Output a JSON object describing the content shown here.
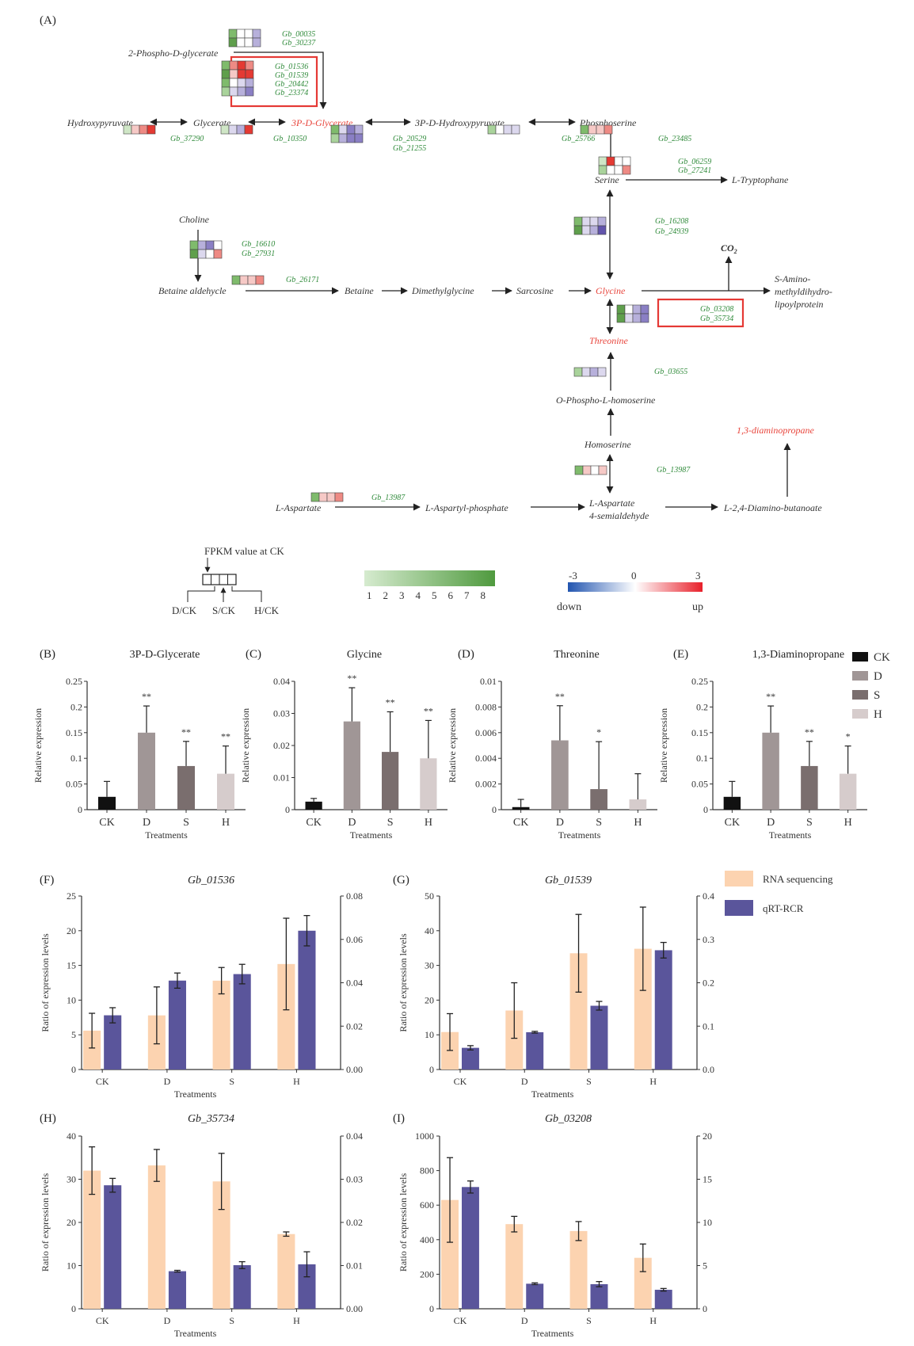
{
  "panel_a": {
    "label": "(A)",
    "metabolites": {
      "phospho_glycerate": "2-Phospho-D-glycerate",
      "hydroxypyruvate": "Hydroxypyruvate",
      "glycerate": "Glycerate",
      "p3_glycerate": "3P-D-Glycerate",
      "p3_hydroxypyruvate": "3P-D-Hydroxypyruvate",
      "phosphoserine": "Phosphoserine",
      "serine": "Serine",
      "tryptophane": "L-Tryptophane",
      "choline": "Choline",
      "betaine_aldehycle": "Betaine aldehycle",
      "betaine": "Betaine",
      "dimethylglycine": "Dimethylglycine",
      "sarcosine": "Sarcosine",
      "glycine": "Glycine",
      "co2": "CO",
      "co2_sub": "2",
      "s_amino_1": "S-Amino-",
      "s_amino_2": "methyldihydro-",
      "s_amino_3": "lipoylprotein",
      "threonine": "Threonine",
      "o_phospho": "O-Phospho-L-homoserine",
      "homoserine": "Homoserine",
      "diaminopropane": "1,3-diaminopropane",
      "l_aspartate": "L-Aspartate",
      "aspartyl_phosphate": "L-Aspartyl-phosphate",
      "aspartate_semi_1": "L-Aspartate",
      "aspartate_semi_2": "4-semialdehyde",
      "diamino_butanoate": "L-2,4-Diamino-butanoate"
    },
    "genes": {
      "g00035": "Gb_00035",
      "g30237": "Gb_30237",
      "g01536": "Gb_01536",
      "g01539": "Gb_01539",
      "g20442": "Gb_20442",
      "g23374": "Gb_23374",
      "g37290": "Gb_37290",
      "g10350": "Gb_10350",
      "g20529": "Gb_20529",
      "g21255": "Gb_21255",
      "g25766": "Gb_25766",
      "g23485": "Gb_23485",
      "g06259": "Gb_06259",
      "g27241": "Gb_27241",
      "g16208": "Gb_16208",
      "g24939": "Gb_24939",
      "g16610": "Gb_16610",
      "g27931": "Gb_27931",
      "g26171": "Gb_26171",
      "g03208": "Gb_03208",
      "g35734": "Gb_35734",
      "g03655": "Gb_03655",
      "g13987a": "Gb_13987",
      "g13987b": "Gb_13987"
    },
    "legend": {
      "fpkm_title": "FPKM value at CK",
      "dck": "D/CK",
      "sck": "S/CK",
      "hck": "H/CK",
      "green_ticks": [
        "1",
        "2",
        "3",
        "4",
        "5",
        "6",
        "7",
        "8"
      ],
      "red_min": "-3",
      "red_mid": "0",
      "red_max": "3",
      "down": "down",
      "up": "up"
    },
    "colors": {
      "heat_up": "#e8453c",
      "heat_down": "#6b5fb0",
      "fpkm": "#5a9e4a",
      "highlight": "#e53935"
    }
  },
  "bar_panels": {
    "ylabel": "Relative expression",
    "xlabel": "Treatments",
    "categories": [
      "CK",
      "D",
      "S",
      "H"
    ],
    "legend": [
      "CK",
      "D",
      "S",
      "H"
    ],
    "colors": [
      "#111111",
      "#a09696",
      "#7a6e6e",
      "#d6cccc"
    ]
  },
  "combo_panels": {
    "ylabel": "Ratio of expression levels",
    "xlabel": "Treatments",
    "categories": [
      "CK",
      "D",
      "S",
      "H"
    ],
    "legend": [
      "RNA sequencing",
      "qRT-RCR"
    ],
    "colors": [
      "#fcd3b0",
      "#5a559b"
    ]
  },
  "chart_data": [
    {
      "type": "bar",
      "label": "(B)",
      "title": "3P-D-Glycerate",
      "categories": [
        "CK",
        "D",
        "S",
        "H"
      ],
      "values": [
        0.025,
        0.15,
        0.085,
        0.07
      ],
      "errors": [
        0.03,
        0.052,
        0.048,
        0.054
      ],
      "significance": [
        "",
        "**",
        "**",
        "**"
      ],
      "ylim": [
        0,
        0.25
      ],
      "yticks": [
        "0",
        "0.05",
        "0.1",
        "0.15",
        "0.2",
        "0.25"
      ],
      "ylabel": "Relative expression",
      "xlabel": "Treatments"
    },
    {
      "type": "bar",
      "label": "(C)",
      "title": "Glycine",
      "categories": [
        "CK",
        "D",
        "S",
        "H"
      ],
      "values": [
        0.0025,
        0.0275,
        0.018,
        0.016
      ],
      "errors": [
        0.001,
        0.0105,
        0.0125,
        0.0118
      ],
      "significance": [
        "",
        "**",
        "**",
        "**"
      ],
      "ylim": [
        0,
        0.04
      ],
      "yticks": [
        "0",
        "0.01",
        "0.02",
        "0.03",
        "0.04"
      ],
      "ylabel": "Relative expression",
      "xlabel": "Treatments"
    },
    {
      "type": "bar",
      "label": "(D)",
      "title": "Threonine",
      "categories": [
        "CK",
        "D",
        "S",
        "H"
      ],
      "values": [
        0.0002,
        0.0054,
        0.0016,
        0.0008
      ],
      "errors": [
        0.0006,
        0.0027,
        0.0037,
        0.002
      ],
      "significance": [
        "",
        "**",
        "*",
        ""
      ],
      "ylim": [
        0,
        0.01
      ],
      "yticks": [
        "0",
        "0.002",
        "0.004",
        "0.006",
        "0.008",
        "0.01"
      ],
      "ylabel": "Relative expression",
      "xlabel": "Treatments"
    },
    {
      "type": "bar",
      "label": "(E)",
      "title": "1,3-Diaminopropane",
      "categories": [
        "CK",
        "D",
        "S",
        "H"
      ],
      "values": [
        0.025,
        0.15,
        0.085,
        0.07
      ],
      "errors": [
        0.03,
        0.052,
        0.048,
        0.054
      ],
      "significance": [
        "",
        "**",
        "**",
        "*"
      ],
      "ylim": [
        0,
        0.25
      ],
      "yticks": [
        "0",
        "0.05",
        "0.1",
        "0.15",
        "0.2",
        "0.25"
      ],
      "ylabel": "Relative expression",
      "xlabel": "Treatments"
    },
    {
      "type": "bar",
      "label": "(F)",
      "title": "Gb_01536",
      "categories": [
        "CK",
        "D",
        "S",
        "H"
      ],
      "series": [
        {
          "name": "RNA sequencing",
          "values": [
            5.6,
            7.8,
            12.8,
            15.2
          ],
          "errors": [
            2.5,
            4.1,
            1.9,
            6.6
          ],
          "axis": "left"
        },
        {
          "name": "qRT-RCR",
          "values": [
            0.025,
            0.041,
            0.044,
            0.064
          ],
          "errors": [
            0.0035,
            0.0035,
            0.0045,
            0.007
          ],
          "axis": "right"
        }
      ],
      "ylim_left": [
        0,
        25
      ],
      "ylim_right": [
        0,
        0.08
      ],
      "yticks_left": [
        "0",
        "5",
        "10",
        "15",
        "20",
        "25"
      ],
      "yticks_right": [
        "0.00",
        "0.02",
        "0.04",
        "0.06",
        "0.08"
      ],
      "ylabel": "Ratio of expression levels",
      "xlabel": "Treatments"
    },
    {
      "type": "bar",
      "label": "(G)",
      "title": "Gb_01539",
      "categories": [
        "CK",
        "D",
        "S",
        "H"
      ],
      "series": [
        {
          "name": "RNA sequencing",
          "values": [
            10.8,
            17,
            33.5,
            34.8
          ],
          "errors": [
            5.3,
            8,
            11.2,
            12
          ],
          "axis": "left"
        },
        {
          "name": "qRT-RCR",
          "values": [
            0.05,
            0.086,
            0.147,
            0.275
          ],
          "errors": [
            0.005,
            0.002,
            0.01,
            0.018
          ],
          "axis": "right"
        }
      ],
      "ylim_left": [
        0,
        50
      ],
      "ylim_right": [
        0,
        0.4
      ],
      "yticks_left": [
        "0",
        "10",
        "20",
        "30",
        "40",
        "50"
      ],
      "yticks_right": [
        "0.0",
        "0.1",
        "0.2",
        "0.3",
        "0.4"
      ],
      "ylabel": "Ratio of expression levels",
      "xlabel": "Treatments"
    },
    {
      "type": "bar",
      "label": "(H)",
      "title": "Gb_35734",
      "categories": [
        "CK",
        "D",
        "S",
        "H"
      ],
      "series": [
        {
          "name": "RNA sequencing",
          "values": [
            32,
            33.2,
            29.5,
            17.3
          ],
          "errors": [
            5.5,
            3.7,
            6.5,
            0.5
          ],
          "axis": "left"
        },
        {
          "name": "qRT-RCR",
          "values": [
            0.0286,
            0.0087,
            0.0101,
            0.0103
          ],
          "errors": [
            0.0016,
            0.0002,
            0.0008,
            0.0029
          ],
          "axis": "right"
        }
      ],
      "ylim_left": [
        0,
        40
      ],
      "ylim_right": [
        0,
        0.04
      ],
      "yticks_left": [
        "0",
        "10",
        "20",
        "30",
        "40"
      ],
      "yticks_right": [
        "0.00",
        "0.01",
        "0.02",
        "0.03",
        "0.04"
      ],
      "ylabel": "Ratio of expression levels",
      "xlabel": "Treatments"
    },
    {
      "type": "bar",
      "label": "(I)",
      "title": "Gb_03208",
      "categories": [
        "CK",
        "D",
        "S",
        "H"
      ],
      "series": [
        {
          "name": "RNA sequencing",
          "values": [
            630,
            490,
            450,
            295
          ],
          "errors": [
            245,
            45,
            55,
            80
          ],
          "axis": "left"
        },
        {
          "name": "qRT-RCR",
          "values": [
            14.1,
            2.9,
            2.85,
            2.2
          ],
          "errors": [
            0.7,
            0.1,
            0.3,
            0.15
          ],
          "axis": "right"
        }
      ],
      "ylim_left": [
        0,
        1000
      ],
      "ylim_right": [
        0,
        20
      ],
      "yticks_left": [
        "0",
        "200",
        "400",
        "600",
        "800",
        "1000"
      ],
      "yticks_right": [
        "0",
        "5",
        "10",
        "15",
        "20"
      ],
      "ylabel": "Ratio of expression levels",
      "xlabel": "Treatments"
    }
  ]
}
